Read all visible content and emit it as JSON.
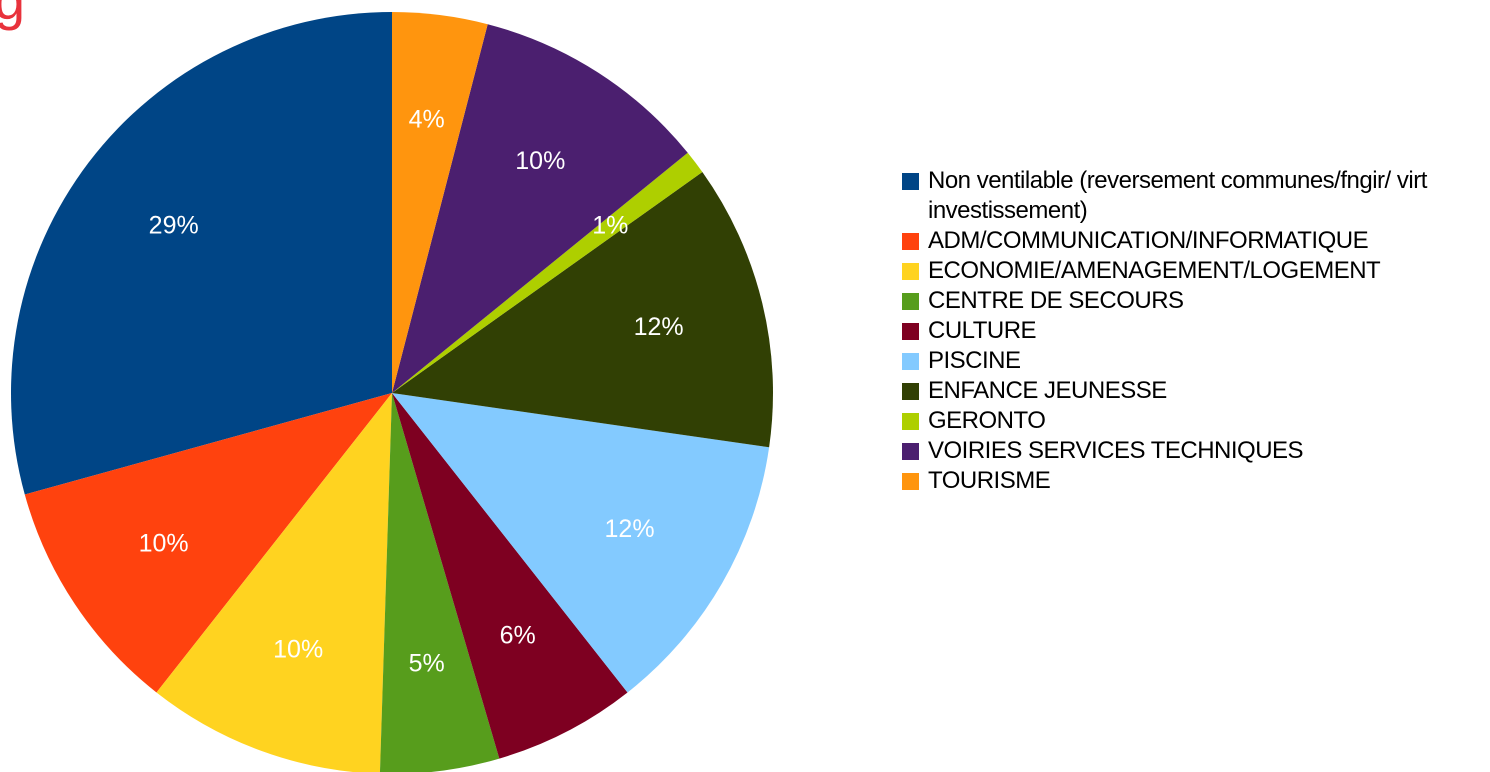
{
  "chart_data": {
    "type": "pie",
    "title": "g",
    "categories": [
      "Non ventilable (reversement communes/fngir/ virt investissement)",
      "ADM/COMMUNICATION/INFORMATIQUE",
      "ECONOMIE/AMENAGEMENT/LOGEMENT",
      "CENTRE DE SECOURS",
      "CULTURE",
      "PISCINE",
      "ENFANCE JEUNESSE",
      "GERONTO",
      "VOIRIES SERVICES TECHNIQUES",
      "TOURISME"
    ],
    "values": [
      29,
      10,
      10,
      5,
      6,
      12,
      12,
      1,
      10,
      4
    ],
    "value_labels": [
      "29%",
      "10%",
      "10%",
      "5%",
      "6%",
      "12%",
      "12%",
      "1%",
      "10%",
      "4%"
    ],
    "colors": [
      "#004586",
      "#ff420e",
      "#ffd320",
      "#579d1c",
      "#7e0021",
      "#83caff",
      "#314004",
      "#aecf00",
      "#4b1f6f",
      "#ff950e"
    ],
    "legend": "right"
  }
}
